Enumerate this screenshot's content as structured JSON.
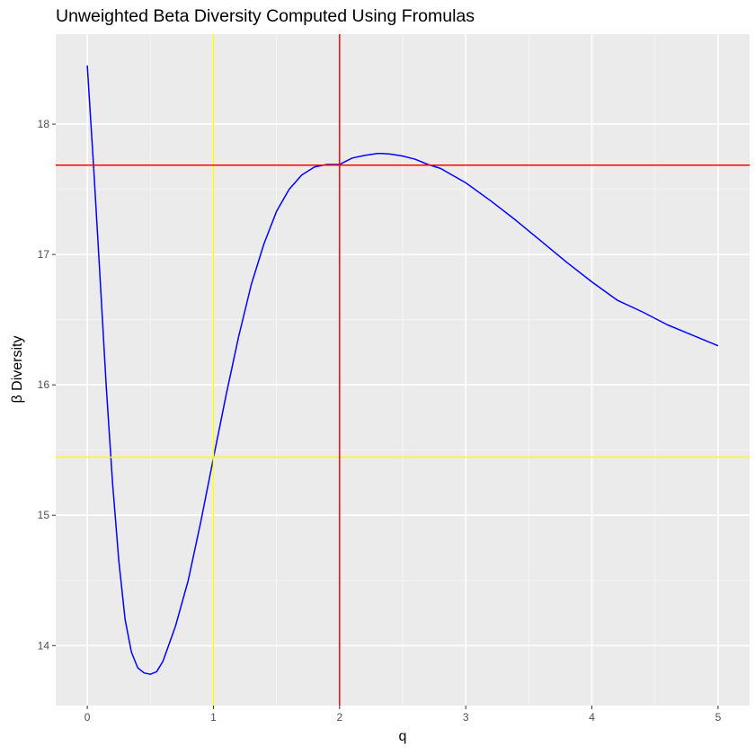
{
  "chart_data": {
    "type": "line",
    "title": "Unweighted Beta Diversity Computed Using Fromulas",
    "xlabel": "q",
    "ylabel": "β Diversity",
    "xlim": [
      -0.25,
      5.25
    ],
    "ylim": [
      13.54,
      18.69
    ],
    "x_ticks": [
      0,
      1,
      2,
      3,
      4,
      5
    ],
    "x_tick_labels": [
      "0",
      "1",
      "2",
      "3",
      "4",
      "5"
    ],
    "y_ticks": [
      14,
      15,
      16,
      17,
      18
    ],
    "y_tick_labels": [
      "14",
      "15",
      "16",
      "17",
      "18"
    ],
    "grid": true,
    "series": [
      {
        "color": "#0000ff",
        "x": [
          0,
          0.05,
          0.1,
          0.15,
          0.2,
          0.25,
          0.3,
          0.35,
          0.4,
          0.45,
          0.5,
          0.55,
          0.6,
          0.7,
          0.8,
          0.9,
          1.0,
          1.1,
          1.2,
          1.3,
          1.4,
          1.5,
          1.6,
          1.7,
          1.8,
          1.9,
          2.0,
          2.1,
          2.2,
          2.3,
          2.33,
          2.4,
          2.5,
          2.6,
          2.7,
          2.8,
          3.0,
          3.2,
          3.4,
          3.6,
          3.8,
          4.0,
          4.2,
          4.4,
          4.6,
          4.8,
          5.0
        ],
        "y": [
          18.45,
          17.68,
          16.85,
          16.0,
          15.25,
          14.65,
          14.2,
          13.95,
          13.83,
          13.79,
          13.78,
          13.8,
          13.88,
          14.15,
          14.5,
          14.95,
          15.44,
          15.92,
          16.37,
          16.77,
          17.08,
          17.33,
          17.5,
          17.61,
          17.67,
          17.69,
          17.69,
          17.74,
          17.76,
          17.775,
          17.775,
          17.77,
          17.755,
          17.73,
          17.69,
          17.66,
          17.55,
          17.41,
          17.26,
          17.1,
          16.94,
          16.79,
          16.65,
          16.56,
          16.46,
          16.38,
          16.3
        ]
      }
    ],
    "reference_lines": [
      {
        "orientation": "vertical",
        "x": 1,
        "color": "#ffff00"
      },
      {
        "orientation": "horizontal",
        "y": 15.445,
        "color": "#ffff00"
      },
      {
        "orientation": "vertical",
        "x": 2,
        "color": "#ff0000"
      },
      {
        "orientation": "horizontal",
        "y": 17.685,
        "color": "#ff0000"
      }
    ],
    "colors": {
      "panel_background": "#ebebeb",
      "grid_major": "#ffffff",
      "grid_minor": "#f5f5f5",
      "tick_label": "#4d4d4d",
      "tick_mark": "#333333"
    }
  }
}
